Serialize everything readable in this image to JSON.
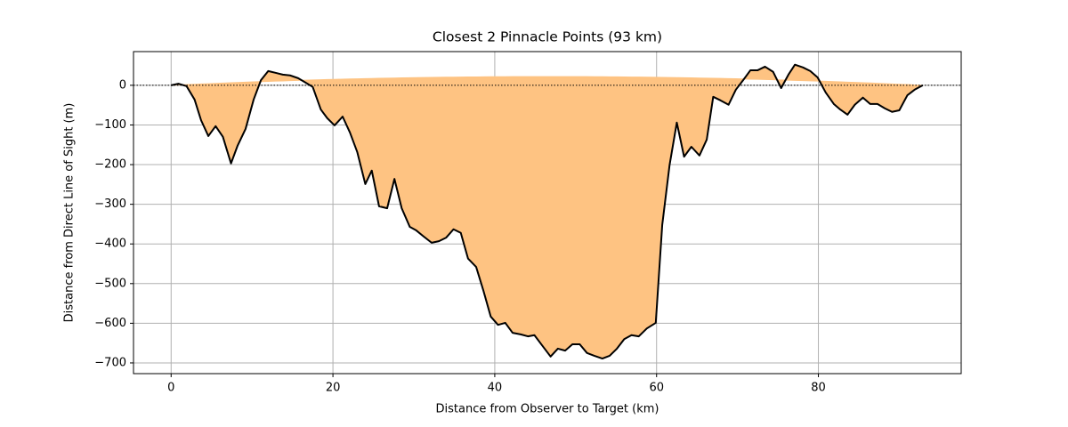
{
  "chart_data": {
    "type": "fill_between",
    "title": "Closest 2 Pinnacle Points (93 km)",
    "x_label": "Distance from Observer to Target (km)",
    "y_label": "Distance from Direct Line of Sight (m)",
    "x": [
      0,
      0.9,
      1.9,
      2.9,
      3.7,
      4.6,
      5.5,
      6.4,
      7.4,
      8.2,
      9.2,
      10.2,
      11.1,
      12.0,
      13.0,
      13.8,
      14.7,
      15.7,
      16.6,
      17.5,
      18.5,
      19.3,
      20.2,
      21.2,
      22.1,
      23.0,
      24.0,
      24.8,
      25.7,
      26.7,
      27.6,
      28.5,
      29.5,
      30.3,
      31.2,
      32.2,
      33.1,
      34.0,
      34.9,
      35.8,
      36.7,
      37.7,
      38.6,
      39.5,
      40.4,
      41.3,
      42.2,
      43.2,
      44.1,
      44.9,
      45.9,
      46.9,
      47.8,
      48.7,
      49.6,
      50.5,
      51.4,
      52.3,
      53.3,
      54.2,
      55.1,
      56.0,
      56.9,
      57.8,
      58.8,
      59.9,
      60.7,
      61.6,
      62.5,
      63.4,
      64.3,
      65.3,
      66.2,
      67.0,
      67.9,
      68.9,
      69.8,
      70.7,
      71.6,
      72.5,
      73.4,
      74.4,
      75.4,
      76.3,
      77.1,
      78.1,
      79.0,
      79.9,
      80.9,
      81.9,
      82.7,
      83.6,
      84.5,
      85.5,
      86.4,
      87.3,
      88.2,
      89.1,
      90.0,
      91.0,
      91.9,
      92.9
    ],
    "series": [
      {
        "color": "#000000",
        "values": [
          0,
          4,
          -2,
          -36,
          -88,
          -128,
          -103,
          -130,
          -197,
          -153,
          -110,
          -36,
          13,
          36,
          31,
          27,
          25,
          18,
          7,
          -4,
          -61,
          -83,
          -101,
          -79,
          -119,
          -168,
          -249,
          -215,
          -305,
          -310,
          -236,
          -310,
          -357,
          -366,
          -381,
          -397,
          -393,
          -384,
          -363,
          -372,
          -437,
          -458,
          -518,
          -583,
          -604,
          -599,
          -624,
          -628,
          -633,
          -630,
          -657,
          -684,
          -664,
          -669,
          -653,
          -653,
          -675,
          -682,
          -689,
          -682,
          -664,
          -640,
          -630,
          -633,
          -613,
          -599,
          -352,
          -202,
          -94,
          -180,
          -155,
          -177,
          -137,
          -29,
          -38,
          -49,
          -11,
          13,
          38,
          38,
          47,
          34,
          -7,
          27,
          52,
          45,
          36,
          20,
          -18,
          -47,
          -61,
          -74,
          -49,
          -31,
          -47,
          -47,
          -58,
          -67,
          -63,
          -25,
          -11,
          0
        ]
      },
      {
        "color": "#fec382",
        "values": [
          0,
          0.8,
          1.8,
          2.7,
          3.4,
          4.1,
          4.9,
          5.6,
          6.4,
          7.1,
          7.8,
          8.6,
          9.3,
          9.9,
          10.6,
          11.1,
          11.7,
          12.4,
          12.9,
          13.4,
          14.0,
          14.5,
          15.0,
          15.5,
          16.0,
          16.4,
          16.9,
          17.2,
          17.6,
          18.0,
          18.4,
          18.7,
          19.1,
          19.3,
          19.6,
          19.9,
          20.2,
          20.4,
          20.6,
          20.8,
          21.0,
          21.2,
          21.4,
          21.5,
          21.6,
          21.7,
          21.8,
          21.9,
          21.9,
          22.0,
          22.0,
          22.0,
          22.0,
          22.0,
          21.9,
          21.8,
          21.8,
          21.7,
          21.5,
          21.4,
          21.3,
          21.1,
          20.9,
          20.7,
          20.5,
          20.2,
          20.0,
          19.7,
          19.4,
          19.1,
          18.8,
          18.4,
          18.1,
          17.7,
          17.3,
          16.9,
          16.5,
          16.1,
          15.6,
          15.1,
          14.6,
          14.1,
          13.5,
          13.0,
          12.5,
          11.8,
          11.3,
          10.7,
          10.0,
          9.3,
          8.7,
          8.0,
          7.3,
          6.5,
          5.8,
          5.1,
          4.3,
          3.5,
          2.7,
          1.9,
          1.0,
          0.1
        ]
      }
    ],
    "reference_line": 0,
    "xlim": [
      -4.65,
      97.65
    ],
    "ylim": [
      -727,
      85
    ],
    "xticks": [
      0,
      20,
      40,
      60,
      80
    ],
    "yticks": [
      {
        "value": -700,
        "label": "−700"
      },
      {
        "value": -600,
        "label": "−600"
      },
      {
        "value": -500,
        "label": "−500"
      },
      {
        "value": -400,
        "label": "−400"
      },
      {
        "value": -300,
        "label": "−300"
      },
      {
        "value": -200,
        "label": "−200"
      },
      {
        "value": -100,
        "label": "−100"
      },
      0
    ],
    "grid": true
  }
}
